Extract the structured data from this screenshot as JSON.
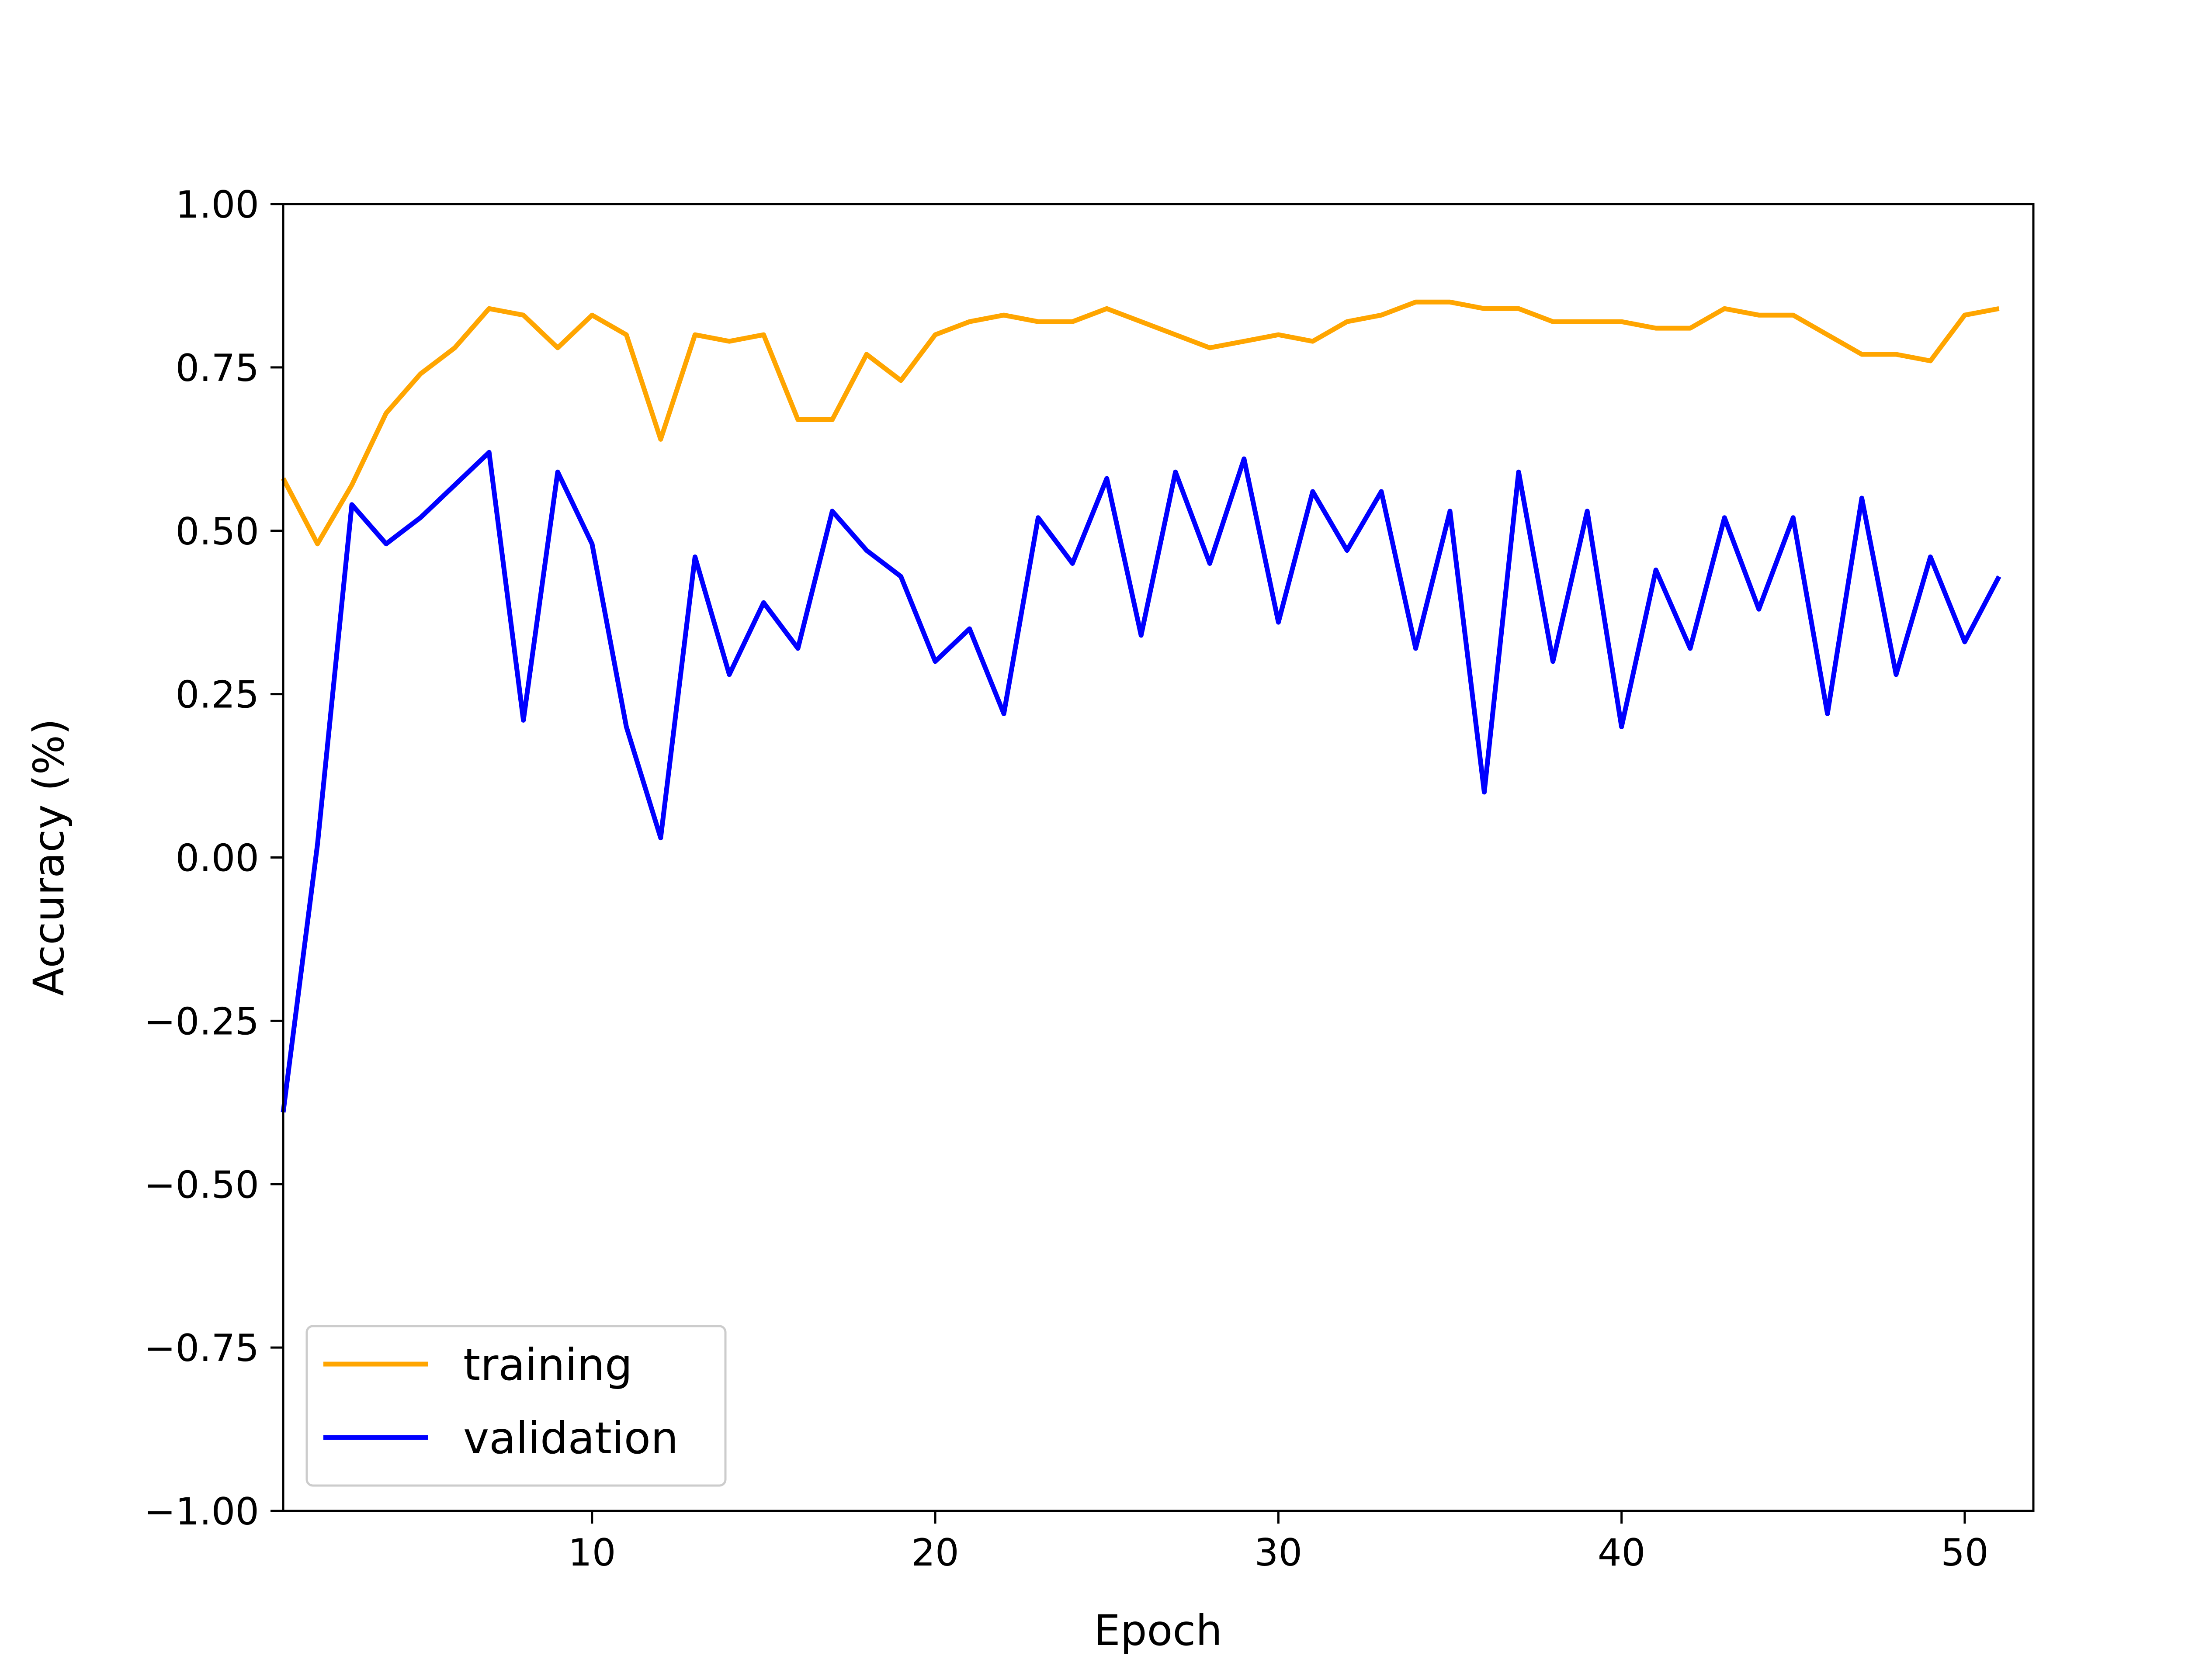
{
  "chart_data": {
    "type": "line",
    "title": "",
    "xlabel": "Epoch",
    "ylabel": "Accuracy (%)",
    "xlim": [
      1,
      52
    ],
    "ylim": [
      -1.0,
      1.0
    ],
    "xticks": [
      10,
      20,
      30,
      40,
      50
    ],
    "xtick_labels": [
      "10",
      "20",
      "30",
      "40",
      "50"
    ],
    "yticks": [
      -1.0,
      -0.75,
      -0.5,
      -0.25,
      0.0,
      0.25,
      0.5,
      0.75,
      1.0
    ],
    "ytick_labels": [
      "−1.00",
      "−0.75",
      "−0.50",
      "−0.25",
      "0.00",
      "0.25",
      "0.50",
      "0.75",
      "1.00"
    ],
    "grid": false,
    "legend_position": "lower-left",
    "x": [
      1,
      2,
      3,
      4,
      5,
      6,
      7,
      8,
      9,
      10,
      11,
      12,
      13,
      14,
      15,
      16,
      17,
      18,
      19,
      20,
      21,
      22,
      23,
      24,
      25,
      26,
      27,
      28,
      29,
      30,
      31,
      32,
      33,
      34,
      35,
      36,
      37,
      38,
      39,
      40,
      41,
      42,
      43,
      44,
      45,
      46,
      47,
      48,
      49,
      50,
      51
    ],
    "series": [
      {
        "name": "training",
        "color": "#FFA500",
        "values": [
          0.58,
          0.48,
          0.57,
          0.68,
          0.74,
          0.78,
          0.84,
          0.83,
          0.78,
          0.83,
          0.8,
          0.64,
          0.8,
          0.79,
          0.8,
          0.67,
          0.67,
          0.77,
          0.73,
          0.8,
          0.82,
          0.83,
          0.82,
          0.82,
          0.84,
          0.82,
          0.8,
          0.78,
          0.79,
          0.8,
          0.79,
          0.82,
          0.83,
          0.85,
          0.85,
          0.84,
          0.84,
          0.82,
          0.82,
          0.82,
          0.81,
          0.81,
          0.84,
          0.83,
          0.83,
          0.8,
          0.77,
          0.77,
          0.76,
          0.83,
          0.84
        ]
      },
      {
        "name": "validation",
        "color": "#0000FF",
        "values": [
          -0.39,
          0.02,
          0.54,
          0.48,
          0.52,
          0.57,
          0.62,
          0.21,
          0.59,
          0.48,
          0.2,
          0.03,
          0.46,
          0.28,
          0.39,
          0.32,
          0.53,
          0.47,
          0.43,
          0.3,
          0.35,
          0.22,
          0.52,
          0.45,
          0.58,
          0.34,
          0.59,
          0.45,
          0.61,
          0.36,
          0.56,
          0.47,
          0.56,
          0.32,
          0.53,
          0.1,
          0.59,
          0.3,
          0.53,
          0.2,
          0.44,
          0.32,
          0.52,
          0.38,
          0.52,
          0.22,
          0.55,
          0.28,
          0.46,
          0.33,
          0.43
        ]
      }
    ]
  }
}
